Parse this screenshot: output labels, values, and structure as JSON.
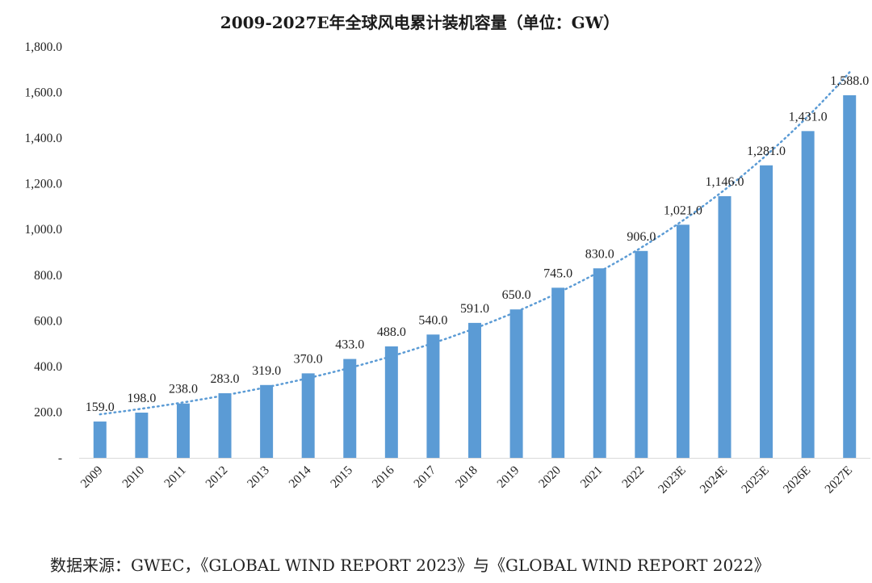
{
  "title": "2009-2027E年全球风电累计装机容量（单位：GW）",
  "source": "数据来源：GWEC，《GLOBAL WIND REPORT 2023》与《GLOBAL WIND REPORT 2022》",
  "colors": {
    "bar": "#5b9bd5",
    "trendline": "#5b9bd5",
    "text": "#222222"
  },
  "chart_data": {
    "type": "bar",
    "title": "2009-2027E年全球风电累计装机容量（单位：GW）",
    "xlabel": "",
    "ylabel": "",
    "categories": [
      "2009",
      "2010",
      "2011",
      "2012",
      "2013",
      "2014",
      "2015",
      "2016",
      "2017",
      "2018",
      "2019",
      "2020",
      "2021",
      "2022",
      "2023E",
      "2024E",
      "2025E",
      "2026E",
      "2027E"
    ],
    "values": [
      159.0,
      198.0,
      238.0,
      283.0,
      319.0,
      370.0,
      433.0,
      488.0,
      540.0,
      591.0,
      650.0,
      745.0,
      830.0,
      906.0,
      1021.0,
      1146.0,
      1281.0,
      1431.0,
      1588.0
    ],
    "value_labels": [
      "159.0",
      "198.0",
      "238.0",
      "283.0",
      "319.0",
      "370.0",
      "433.0",
      "488.0",
      "540.0",
      "591.0",
      "650.0",
      "745.0",
      "830.0",
      "906.0",
      "1,021.0",
      "1,146.0",
      "1,281.0",
      "1,431.0",
      "1,588.0"
    ],
    "ylim": [
      0,
      1800
    ],
    "yticks": [
      0,
      200,
      400,
      600,
      800,
      1000,
      1200,
      1400,
      1600,
      1800
    ],
    "ytick_labels": [
      "-",
      "200.0",
      "400.0",
      "600.0",
      "800.0",
      "1,000.0",
      "1,200.0",
      "1,400.0",
      "1,600.0",
      "1,800.0"
    ],
    "trendline": "dotted",
    "grid": false,
    "legend": "none"
  }
}
